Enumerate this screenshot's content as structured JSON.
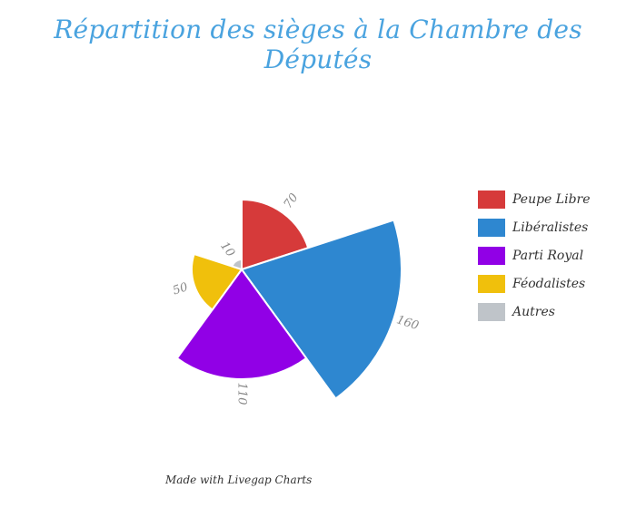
{
  "chart_data": {
    "type": "polar-area",
    "title": "Répartition des sièges à la Chambre des Députés",
    "max_value": 160,
    "series": [
      {
        "name": "Peupe Libre",
        "value": 70,
        "color": "#d63a3a"
      },
      {
        "name": "Libéralistes",
        "value": 160,
        "color": "#2e87d0"
      },
      {
        "name": "Parti Royal",
        "value": 110,
        "color": "#9100e6"
      },
      {
        "name": "Féodalistes",
        "value": 50,
        "color": "#f0c00c"
      },
      {
        "name": "Autres",
        "value": 10,
        "color": "#bfc4c9"
      }
    ],
    "legend_position": "right"
  },
  "footer": {
    "text": "Made with Livegap Charts"
  }
}
